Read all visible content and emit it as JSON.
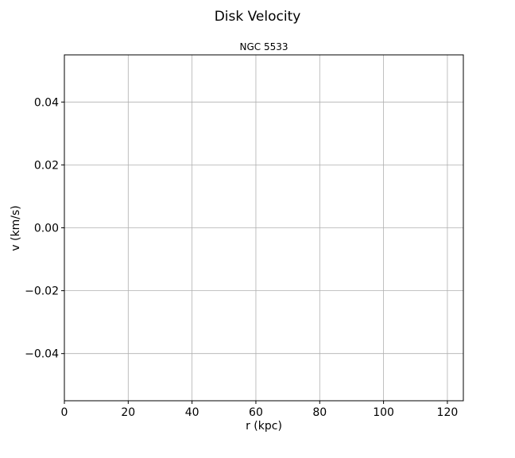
{
  "chart_data": {
    "type": "line",
    "title": "Disk Velocity",
    "subtitle": "NGC 5533",
    "xlabel": "r (kpc)",
    "ylabel": "v (km/s)",
    "xlim": [
      0,
      125
    ],
    "ylim": [
      -0.055,
      0.055
    ],
    "xticks": [
      0,
      20,
      40,
      60,
      80,
      100,
      120
    ],
    "xtick_labels": [
      "0",
      "20",
      "40",
      "60",
      "80",
      "100",
      "120"
    ],
    "yticks": [
      -0.04,
      -0.02,
      0.0,
      0.02,
      0.04
    ],
    "ytick_labels": [
      "−0.04",
      "−0.02",
      "0.00",
      "0.02",
      "0.04"
    ],
    "grid": true,
    "series": []
  }
}
